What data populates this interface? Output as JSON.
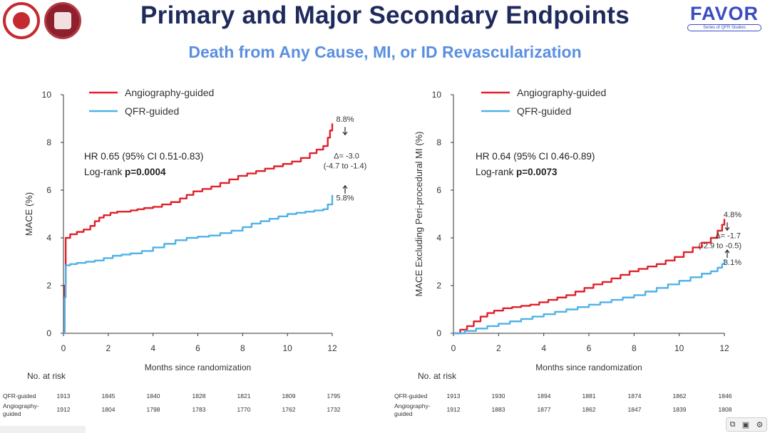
{
  "title": "Primary and Major Secondary Endpoints",
  "subtitle": "Death from Any Cause, MI, or ID Revascularization",
  "logo": {
    "name": "FAVOR",
    "tagline": "Series of QFR Studies"
  },
  "colors": {
    "angiography": "#e0202a",
    "qfr": "#4fb2e6",
    "title": "#1f2a5c",
    "subtitle": "#5b8fe0"
  },
  "toolbar": {
    "icons": [
      "copy-icon",
      "screenshot-icon",
      "settings-icon"
    ]
  },
  "chart_data": [
    {
      "type": "line",
      "step": true,
      "ylabel": "MACE (%)",
      "xlabel": "Months since randomization",
      "xlim": [
        0,
        12
      ],
      "ylim": [
        0,
        10
      ],
      "xticks": [
        0,
        2,
        4,
        6,
        8,
        10,
        12
      ],
      "yticks": [
        0,
        2,
        4,
        6,
        8,
        10
      ],
      "legend": [
        "Angiography-guided",
        "QFR-guided"
      ],
      "legend_placement": "top-left",
      "stats": {
        "hr_text": "HR 0.65 (95% CI 0.51-0.83)",
        "logrank_prefix": "Log-rank ",
        "logrank_p": "p=0.0004"
      },
      "annotations": {
        "top": "8.8%",
        "bottom": "5.8%",
        "delta": "Δ= -3.0",
        "ci": "(-4.7 to -1.4)"
      },
      "series": [
        {
          "name": "Angiography-guided",
          "color": "#e0202a",
          "x": [
            0,
            0.05,
            0.1,
            0.3,
            0.6,
            0.9,
            1.2,
            1.4,
            1.6,
            1.8,
            2.1,
            2.4,
            2.7,
            3.0,
            3.3,
            3.6,
            4.0,
            4.4,
            4.8,
            5.2,
            5.5,
            5.8,
            6.2,
            6.6,
            7.0,
            7.4,
            7.8,
            8.2,
            8.6,
            9.0,
            9.4,
            9.8,
            10.2,
            10.6,
            11.0,
            11.3,
            11.6,
            11.8,
            11.9,
            12.0
          ],
          "y": [
            0,
            2.0,
            4.0,
            4.15,
            4.25,
            4.35,
            4.5,
            4.7,
            4.85,
            4.95,
            5.05,
            5.1,
            5.1,
            5.15,
            5.2,
            5.25,
            5.3,
            5.4,
            5.5,
            5.65,
            5.8,
            5.95,
            6.05,
            6.15,
            6.3,
            6.45,
            6.6,
            6.7,
            6.8,
            6.9,
            7.0,
            7.1,
            7.2,
            7.35,
            7.55,
            7.7,
            7.85,
            8.2,
            8.5,
            8.8
          ]
        },
        {
          "name": "QFR-guided",
          "color": "#4fb2e6",
          "x": [
            0,
            0.05,
            0.1,
            0.3,
            0.6,
            1.0,
            1.4,
            1.8,
            2.2,
            2.6,
            3.0,
            3.5,
            4.0,
            4.5,
            5.0,
            5.5,
            6.0,
            6.5,
            7.0,
            7.5,
            8.0,
            8.4,
            8.8,
            9.2,
            9.6,
            10.0,
            10.4,
            10.8,
            11.2,
            11.6,
            11.8,
            12.0
          ],
          "y": [
            0,
            1.5,
            2.85,
            2.9,
            2.95,
            3.0,
            3.05,
            3.15,
            3.25,
            3.3,
            3.35,
            3.45,
            3.6,
            3.75,
            3.9,
            4.0,
            4.05,
            4.1,
            4.2,
            4.3,
            4.45,
            4.6,
            4.7,
            4.8,
            4.9,
            5.0,
            5.05,
            5.1,
            5.15,
            5.2,
            5.4,
            5.8
          ]
        }
      ],
      "at_risk": {
        "label": "No. at risk",
        "rows": [
          {
            "name": "QFR-guided",
            "values": [
              "1913",
              "1845",
              "1840",
              "1828",
              "1821",
              "1809",
              "1795"
            ]
          },
          {
            "name": "Angiography-guided",
            "values": [
              "1912",
              "1804",
              "1798",
              "1783",
              "1770",
              "1762",
              "1732"
            ]
          }
        ]
      }
    },
    {
      "type": "line",
      "step": true,
      "ylabel": "MACE Excluding Peri-procedural MI (%)",
      "xlabel": "Months since randomization",
      "xlim": [
        0,
        12
      ],
      "ylim": [
        0,
        10
      ],
      "xticks": [
        0,
        2,
        4,
        6,
        8,
        10,
        12
      ],
      "yticks": [
        0,
        2,
        4,
        6,
        8,
        10
      ],
      "legend": [
        "Angiography-guided",
        "QFR-guided"
      ],
      "legend_placement": "top-left",
      "stats": {
        "hr_text": "HR 0.64 (95% CI 0.46-0.89)",
        "logrank_prefix": "Log-rank ",
        "logrank_p": "p=0.0073"
      },
      "annotations": {
        "top": "4.8%",
        "bottom": "3.1%",
        "delta": "Δ= -1.7",
        "ci": "(-2.9 to -0.5)"
      },
      "series": [
        {
          "name": "Angiography-guided",
          "color": "#e0202a",
          "x": [
            0,
            0.3,
            0.6,
            0.9,
            1.2,
            1.5,
            1.8,
            2.2,
            2.6,
            3.0,
            3.4,
            3.8,
            4.2,
            4.6,
            5.0,
            5.4,
            5.8,
            6.2,
            6.6,
            7.0,
            7.4,
            7.8,
            8.2,
            8.6,
            9.0,
            9.4,
            9.8,
            10.2,
            10.6,
            11.0,
            11.4,
            11.7,
            11.9,
            12.0
          ],
          "y": [
            0,
            0.15,
            0.3,
            0.5,
            0.7,
            0.85,
            0.95,
            1.05,
            1.1,
            1.15,
            1.2,
            1.3,
            1.4,
            1.5,
            1.6,
            1.75,
            1.9,
            2.05,
            2.15,
            2.3,
            2.45,
            2.6,
            2.7,
            2.8,
            2.9,
            3.05,
            3.2,
            3.4,
            3.6,
            3.8,
            4.0,
            4.3,
            4.55,
            4.8
          ]
        },
        {
          "name": "QFR-guided",
          "color": "#4fb2e6",
          "x": [
            0,
            0.5,
            1.0,
            1.5,
            2.0,
            2.5,
            3.0,
            3.5,
            4.0,
            4.5,
            5.0,
            5.5,
            6.0,
            6.5,
            7.0,
            7.5,
            8.0,
            8.5,
            9.0,
            9.5,
            10.0,
            10.5,
            11.0,
            11.4,
            11.7,
            11.9,
            12.0
          ],
          "y": [
            0,
            0.1,
            0.2,
            0.3,
            0.4,
            0.5,
            0.6,
            0.7,
            0.8,
            0.9,
            1.0,
            1.1,
            1.2,
            1.3,
            1.4,
            1.5,
            1.6,
            1.75,
            1.9,
            2.05,
            2.2,
            2.35,
            2.5,
            2.6,
            2.75,
            2.9,
            3.1
          ]
        }
      ],
      "at_risk": {
        "label": "No. at risk",
        "rows": [
          {
            "name": "QFR-guided",
            "values": [
              "1913",
              "1930",
              "1894",
              "1881",
              "1874",
              "1862",
              "1846"
            ]
          },
          {
            "name": "Angiography-guided",
            "values": [
              "1912",
              "1883",
              "1877",
              "1862",
              "1847",
              "1839",
              "1808"
            ]
          }
        ]
      }
    }
  ]
}
